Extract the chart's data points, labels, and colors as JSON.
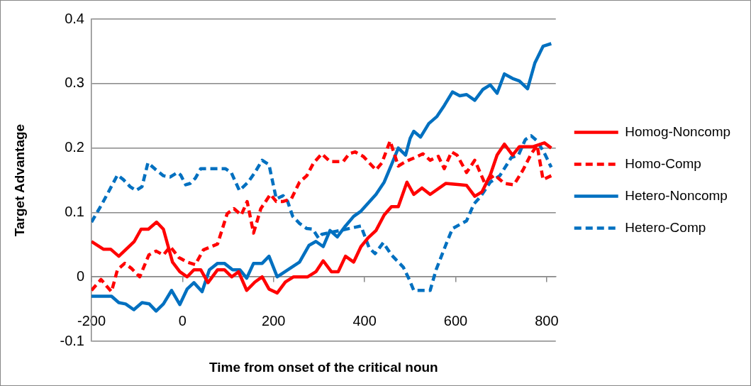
{
  "chart_data": {
    "type": "line",
    "xlabel": "Time from onset of the critical noun",
    "ylabel": "Target Advantage",
    "xlim": [
      -200,
      820
    ],
    "xticks": [
      -200,
      0,
      200,
      400,
      600,
      800
    ],
    "ylim": [
      -0.1,
      0.4
    ],
    "yticks": [
      -0.1,
      0,
      0.1,
      0.2,
      0.3,
      0.4
    ],
    "grid": "y",
    "legend": "right",
    "marker": "none",
    "series": [
      {
        "name": "Homog-Noncomp",
        "color": "#ff0000",
        "line_style": "solid",
        "x": [
          -200,
          -174,
          -158,
          -140,
          -106,
          -91,
          -75,
          -57,
          -42,
          -22,
          -6,
          10,
          25,
          40,
          56,
          77,
          92,
          108,
          123,
          141,
          159,
          175,
          190,
          208,
          226,
          244,
          275,
          293,
          309,
          327,
          342,
          358,
          376,
          392,
          407,
          425,
          443,
          459,
          474,
          493,
          508,
          526,
          544,
          578,
          609,
          624,
          642,
          658,
          676,
          691,
          707,
          725,
          740,
          769,
          795,
          810
        ],
        "values": [
          0.055,
          0.043,
          0.043,
          0.032,
          0.055,
          0.074,
          0.074,
          0.085,
          0.074,
          0.023,
          0.008,
          0,
          0.011,
          0.011,
          -0.009,
          0.011,
          0.011,
          0,
          0.008,
          -0.021,
          -0.008,
          0,
          -0.019,
          -0.025,
          -0.008,
          0,
          0,
          0.008,
          0.025,
          0.008,
          0.008,
          0.032,
          0.023,
          0.047,
          0.06,
          0.072,
          0.096,
          0.109,
          0.109,
          0.147,
          0.128,
          0.138,
          0.128,
          0.145,
          0.143,
          0.142,
          0.125,
          0.132,
          0.158,
          0.189,
          0.206,
          0.189,
          0.202,
          0.202,
          0.208,
          0.2
        ]
      },
      {
        "name": "Homo-Comp",
        "color": "#ff0000",
        "line_style": "dashed",
        "x": [
          -200,
          -179,
          -166,
          -156,
          -143,
          -127,
          -112,
          -94,
          -74,
          -58,
          -42,
          -27,
          -8,
          10,
          28,
          46,
          77,
          98,
          113,
          129,
          142,
          156,
          172,
          193,
          206,
          221,
          239,
          257,
          273,
          288,
          306,
          324,
          353,
          366,
          379,
          397,
          425,
          438,
          456,
          474,
          490,
          510,
          528,
          544,
          562,
          575,
          591,
          603,
          624,
          642,
          663,
          686,
          707,
          728,
          748,
          766,
          779,
          792,
          810
        ],
        "values": [
          -0.021,
          -0.004,
          -0.015,
          -0.023,
          0.011,
          0.021,
          0.013,
          0,
          0.034,
          0.04,
          0.034,
          0.047,
          0.03,
          0.023,
          0.019,
          0.042,
          0.051,
          0.098,
          0.106,
          0.096,
          0.117,
          0.068,
          0.106,
          0.128,
          0.117,
          0.117,
          0.121,
          0.147,
          0.157,
          0.177,
          0.191,
          0.179,
          0.179,
          0.191,
          0.194,
          0.187,
          0.166,
          0.177,
          0.211,
          0.172,
          0.179,
          0.185,
          0.191,
          0.181,
          0.187,
          0.168,
          0.194,
          0.189,
          0.162,
          0.181,
          0.147,
          0.158,
          0.145,
          0.143,
          0.166,
          0.191,
          0.204,
          0.151,
          0.157
        ]
      },
      {
        "name": "Hetero-Noncomp",
        "color": "#0070c0",
        "line_style": "solid",
        "x": [
          -200,
          -156,
          -140,
          -125,
          -107,
          -89,
          -73,
          -58,
          -42,
          -24,
          -6,
          10,
          25,
          43,
          59,
          77,
          92,
          110,
          126,
          141,
          156,
          175,
          190,
          208,
          257,
          278,
          293,
          309,
          324,
          340,
          358,
          376,
          392,
          425,
          443,
          459,
          474,
          490,
          500,
          508,
          523,
          541,
          559,
          575,
          593,
          609,
          624,
          642,
          660,
          676,
          691,
          707,
          725,
          740,
          758,
          774,
          792,
          810
        ],
        "values": [
          -0.03,
          -0.03,
          -0.04,
          -0.042,
          -0.051,
          -0.04,
          -0.042,
          -0.053,
          -0.042,
          -0.021,
          -0.043,
          -0.019,
          -0.009,
          -0.023,
          0.011,
          0.021,
          0.021,
          0.011,
          0.011,
          -0.002,
          0.021,
          0.021,
          0.032,
          0,
          0.023,
          0.049,
          0.055,
          0.047,
          0.072,
          0.062,
          0.079,
          0.094,
          0.102,
          0.128,
          0.147,
          0.174,
          0.2,
          0.189,
          0.215,
          0.226,
          0.217,
          0.238,
          0.249,
          0.266,
          0.287,
          0.281,
          0.283,
          0.274,
          0.291,
          0.298,
          0.285,
          0.315,
          0.308,
          0.304,
          0.292,
          0.332,
          0.358,
          0.362
        ]
      },
      {
        "name": "Hetero-Comp",
        "color": "#0070c0",
        "line_style": "dashed",
        "x": [
          -200,
          -177,
          -161,
          -143,
          -130,
          -115,
          -102,
          -89,
          -76,
          -58,
          -42,
          -27,
          -11,
          -4,
          7,
          17,
          28,
          40,
          56,
          94,
          107,
          125,
          144,
          159,
          175,
          190,
          206,
          221,
          231,
          242,
          257,
          273,
          286,
          299,
          306,
          392,
          410,
          423,
          441,
          459,
          485,
          498,
          508,
          544,
          557,
          578,
          593,
          624,
          640,
          655,
          676,
          697,
          722,
          738,
          753,
          766,
          779,
          795,
          810
        ],
        "values": [
          0.085,
          0.113,
          0.134,
          0.158,
          0.151,
          0.14,
          0.134,
          0.14,
          0.177,
          0.166,
          0.157,
          0.155,
          0.162,
          0.158,
          0.143,
          0.145,
          0.153,
          0.168,
          0.168,
          0.168,
          0.162,
          0.134,
          0.147,
          0.162,
          0.181,
          0.174,
          0.121,
          0.126,
          0.117,
          0.094,
          0.083,
          0.075,
          0.074,
          0.06,
          0.066,
          0.079,
          0.045,
          0.036,
          0.053,
          0.034,
          0.015,
          -0.004,
          -0.021,
          -0.021,
          0.011,
          0.049,
          0.075,
          0.087,
          0.113,
          0.125,
          0.147,
          0.157,
          0.185,
          0.189,
          0.213,
          0.219,
          0.211,
          0.192,
          0.17
        ]
      }
    ]
  }
}
